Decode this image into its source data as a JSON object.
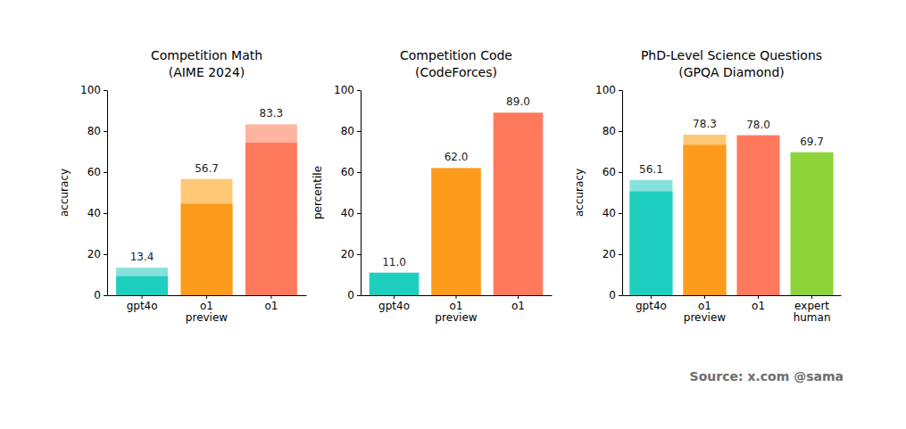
{
  "chart_data": [
    {
      "type": "bar",
      "title": "Competition Math",
      "subtitle": "(AIME 2024)",
      "y_label": "accuracy",
      "categories": [
        "gpt4o",
        "o1 preview",
        "o1"
      ],
      "ylim": [
        0,
        100
      ],
      "yticks": [
        0,
        20,
        40,
        60,
        80,
        100
      ],
      "data_labels": true,
      "series": [
        {
          "colors": [
            "#86e2db",
            "#ffc877",
            "#ffb4a2"
          ],
          "values": [
            13.4,
            56.7,
            83.3
          ],
          "value_labels": [
            "13.4",
            "56.7",
            "83.3"
          ]
        },
        {
          "colors": [
            "#1ecfbf",
            "#fd9b1c",
            "#ff7a5c"
          ],
          "values": [
            9.3,
            44.6,
            74.4
          ]
        }
      ]
    },
    {
      "type": "bar",
      "title": "Competition Code",
      "subtitle": "(CodeForces)",
      "y_label": "percentile",
      "categories": [
        "gpt4o",
        "o1 preview",
        "o1"
      ],
      "ylim": [
        0,
        100
      ],
      "yticks": [
        0,
        20,
        40,
        60,
        80,
        100
      ],
      "data_labels": true,
      "series": [
        {
          "colors": [
            "#1ecfbf",
            "#fd9b1c",
            "#ff7a5c"
          ],
          "values": [
            11.0,
            62.0,
            89.0
          ],
          "value_labels": [
            "11.0",
            "62.0",
            "89.0"
          ]
        }
      ]
    },
    {
      "type": "bar",
      "title": "PhD-Level Science Questions",
      "subtitle": "(GPQA Diamond)",
      "y_label": "accuracy",
      "categories": [
        "gpt4o",
        "o1 preview",
        "o1",
        "expert human"
      ],
      "ylim": [
        0,
        100
      ],
      "yticks": [
        0,
        20,
        40,
        60,
        80,
        100
      ],
      "data_labels": true,
      "series": [
        {
          "colors": [
            "#86e2db",
            "#ffc877",
            "#ff7a5c",
            "#8cd43a"
          ],
          "values": [
            56.1,
            78.3,
            78.0,
            69.7
          ],
          "value_labels": [
            "56.1",
            "78.3",
            "78.0",
            "69.7"
          ]
        },
        {
          "colors": [
            "#1ecfbf",
            "#fd9b1c",
            null,
            null
          ],
          "values": [
            50.6,
            73.3,
            null,
            null
          ]
        }
      ]
    }
  ],
  "source": "Source: x.com @sama"
}
